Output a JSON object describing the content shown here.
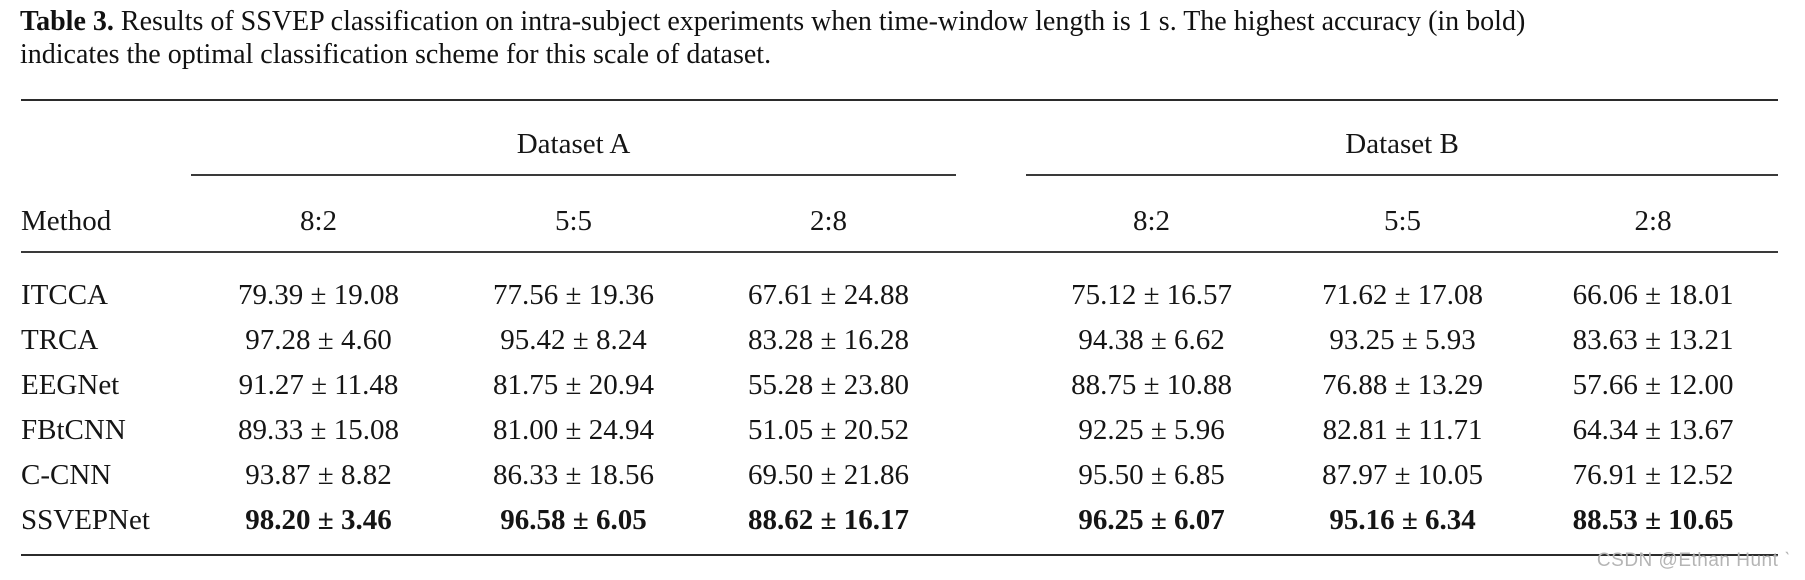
{
  "caption": {
    "label": "Table 3.",
    "text": " Results of SSVEP classification on intra-subject experiments when time-window length is 1 s. The highest accuracy (in bold) indicates the optimal classification scheme for this scale of dataset."
  },
  "table": {
    "method_header": "Method",
    "groups": [
      {
        "label": "Dataset A",
        "columns": [
          "8:2",
          "5:5",
          "2:8"
        ]
      },
      {
        "label": "Dataset B",
        "columns": [
          "8:2",
          "5:5",
          "2:8"
        ]
      }
    ],
    "rows": [
      {
        "method": "ITCCA",
        "bold": false,
        "values": [
          "79.39 ± 19.08",
          "77.56 ± 19.36",
          "67.61 ± 24.88",
          "75.12 ± 16.57",
          "71.62 ± 17.08",
          "66.06 ± 18.01"
        ]
      },
      {
        "method": "TRCA",
        "bold": false,
        "values": [
          "97.28 ± 4.60",
          "95.42 ± 8.24",
          "83.28 ± 16.28",
          "94.38 ± 6.62",
          "93.25 ± 5.93",
          "83.63 ± 13.21"
        ]
      },
      {
        "method": "EEGNet",
        "bold": false,
        "values": [
          "91.27 ± 11.48",
          "81.75 ± 20.94",
          "55.28 ± 23.80",
          "88.75 ± 10.88",
          "76.88 ± 13.29",
          "57.66 ± 12.00"
        ]
      },
      {
        "method": "FBtCNN",
        "bold": false,
        "values": [
          "89.33 ± 15.08",
          "81.00 ± 24.94",
          "51.05 ± 20.52",
          "92.25 ± 5.96",
          "82.81 ± 11.71",
          "64.34 ± 13.67"
        ]
      },
      {
        "method": "C-CNN",
        "bold": false,
        "values": [
          "93.87 ± 8.82",
          "86.33 ± 18.56",
          "69.50 ± 21.86",
          "95.50 ± 6.85",
          "87.97 ± 10.05",
          "76.91 ± 12.52"
        ]
      },
      {
        "method": "SSVEPNet",
        "bold": true,
        "values": [
          "98.20 ± 3.46",
          "96.58 ± 6.05",
          "88.62 ± 16.17",
          "96.25 ± 6.07",
          "95.16 ± 6.34",
          "88.53 ± 10.65"
        ]
      }
    ]
  },
  "watermark": "CSDN @Ethan Hunt ˋ"
}
